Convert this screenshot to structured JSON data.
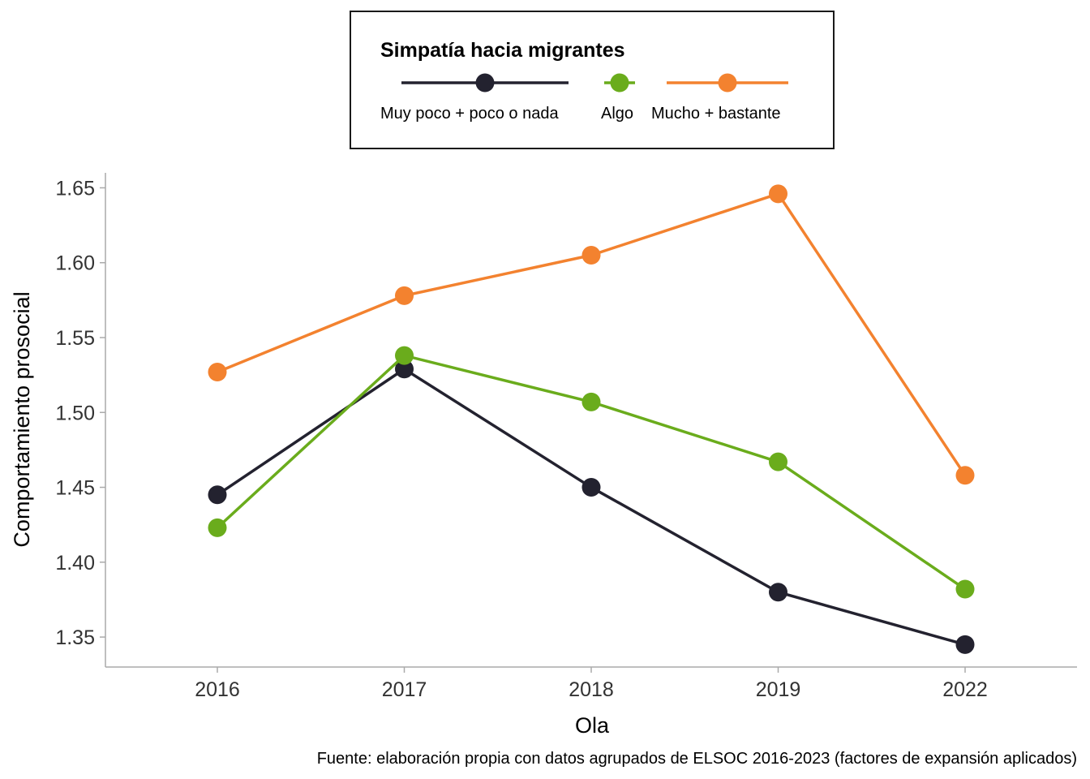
{
  "chart_data": {
    "type": "line",
    "categories": [
      "2016",
      "2017",
      "2018",
      "2019",
      "2022"
    ],
    "series": [
      {
        "name": "Muy poco + poco o nada",
        "color": "#23222f",
        "values": [
          1.445,
          1.529,
          1.45,
          1.38,
          1.345
        ]
      },
      {
        "name": "Algo",
        "color": "#6aac1c",
        "values": [
          1.423,
          1.538,
          1.507,
          1.467,
          1.382
        ]
      },
      {
        "name": "Mucho + bastante",
        "color": "#f3822f",
        "values": [
          1.527,
          1.578,
          1.605,
          1.646,
          1.458
        ]
      }
    ],
    "xlabel": "Ola",
    "ylabel": "Comportamiento prosocial",
    "ylim": [
      1.33,
      1.66
    ],
    "yticks": [
      "1.35",
      "1.40",
      "1.45",
      "1.50",
      "1.55",
      "1.60",
      "1.65"
    ],
    "grid": false,
    "legend": {
      "title": "Simpatía hacia migrantes",
      "position": "top"
    },
    "caption": "Fuente: elaboración propia con datos agrupados de ELSOC 2016-2023 (factores de expansión aplicados)"
  }
}
